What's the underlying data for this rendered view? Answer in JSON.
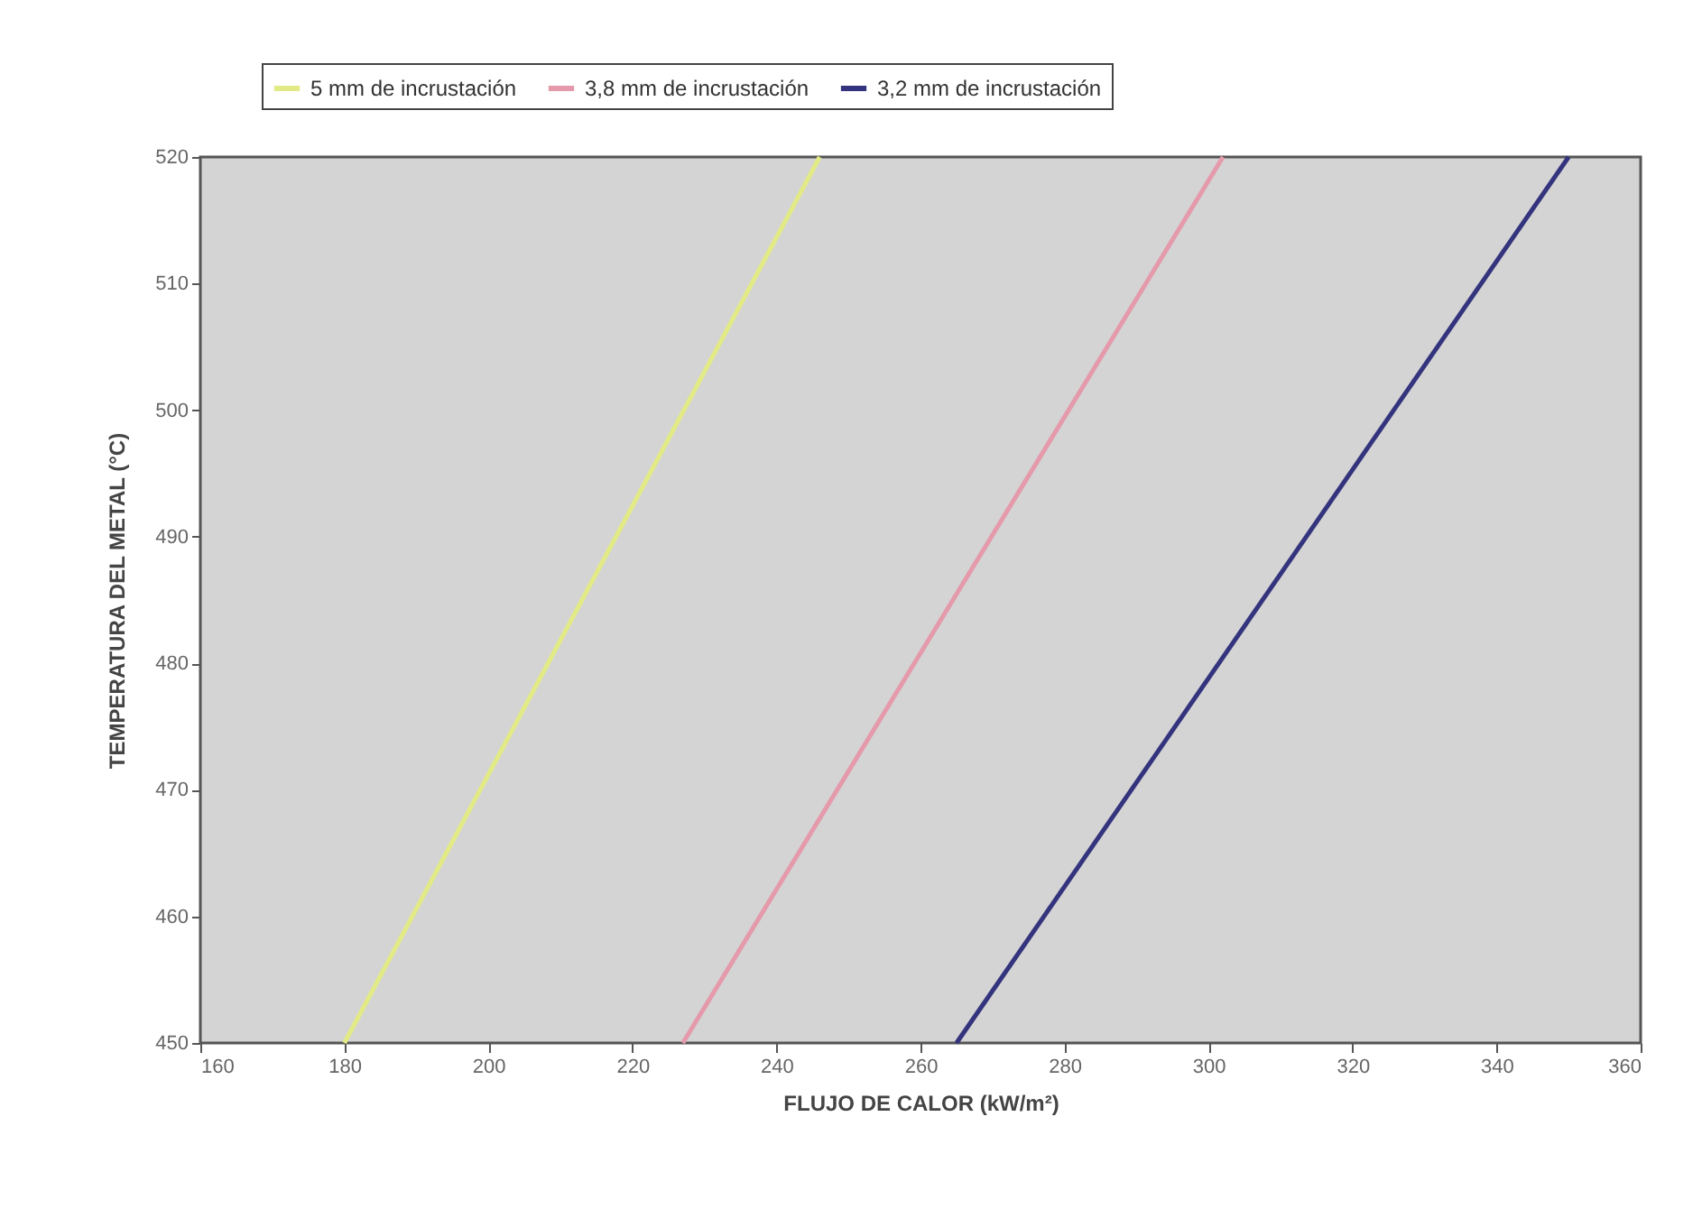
{
  "chart_data": {
    "type": "line",
    "xlabel": "FLUJO DE CALOR (kW/m²)",
    "ylabel": "TEMPERATURA DEL METAL (°C)",
    "xlim": [
      160,
      360
    ],
    "xticks": [
      160,
      180,
      200,
      220,
      240,
      260,
      280,
      300,
      320,
      340,
      360
    ],
    "ylim": [
      450,
      520
    ],
    "yticks": [
      450,
      460,
      470,
      480,
      490,
      500,
      510,
      520
    ],
    "grid": false,
    "legend": "top",
    "marker": "none",
    "line_style": "solid",
    "series": [
      {
        "name": "5 mm de incrustación",
        "color": "#e2ea86",
        "x": [
          180,
          246
        ],
        "values": [
          450,
          520
        ]
      },
      {
        "name": "3,8 mm de incrustación",
        "color": "#e49aab",
        "x": [
          227,
          302
        ],
        "values": [
          450,
          520
        ]
      },
      {
        "name": "3,2 mm de incrustación",
        "color": "#34347e",
        "x": [
          265,
          350
        ],
        "values": [
          450,
          520
        ]
      }
    ]
  }
}
